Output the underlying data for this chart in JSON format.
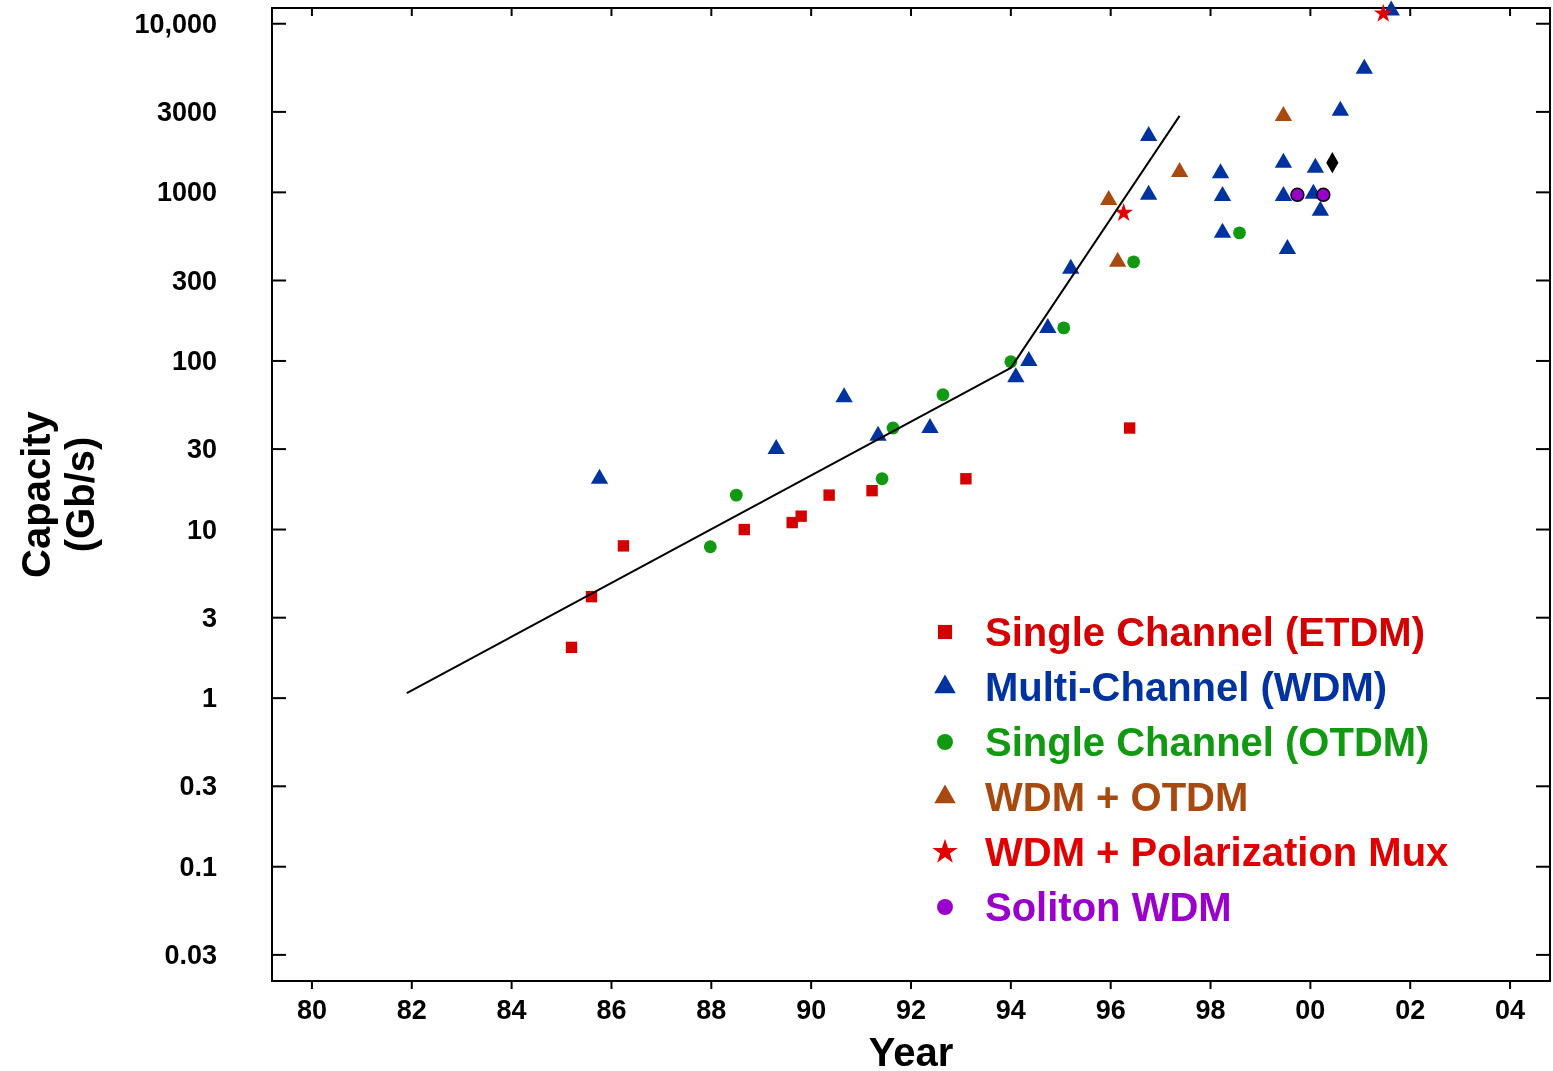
{
  "chart_data": {
    "type": "scatter",
    "xlabel": "Year",
    "ylabel": "Capacity (Gb/s)",
    "log": "y",
    "legend": "bottom right",
    "xlim": [
      1979.2,
      2004.8
    ],
    "xticks": [
      {
        "value": 1980,
        "label": "80"
      },
      {
        "value": 1982,
        "label": "82"
      },
      {
        "value": 1984,
        "label": "84"
      },
      {
        "value": 1986,
        "label": "86"
      },
      {
        "value": 1988,
        "label": "88"
      },
      {
        "value": 1990,
        "label": "90"
      },
      {
        "value": 1992,
        "label": "92"
      },
      {
        "value": 1994,
        "label": "94"
      },
      {
        "value": 1996,
        "label": "96"
      },
      {
        "value": 1998,
        "label": "98"
      },
      {
        "value": 2000,
        "label": "00"
      },
      {
        "value": 2002,
        "label": "02"
      },
      {
        "value": 2004,
        "label": "04"
      }
    ],
    "ylim": [
      0.021,
      12400
    ],
    "yticks": [
      0.03,
      0.1,
      0.3,
      1,
      3,
      10,
      30,
      100,
      300,
      1000,
      3000,
      {
        "value": 10000,
        "label": "10,000"
      }
    ],
    "series": [
      {
        "name": "Single Channel (ETDM)",
        "color": "#d40000",
        "marker": "square",
        "x": [
          1985.2,
          1985.6,
          1986.24,
          1988.66,
          1989.62,
          1989.8,
          1990.36,
          1991.22,
          1993.1,
          1996.38
        ],
        "values": [
          2.0,
          4.0,
          8.0,
          10,
          11,
          12,
          16,
          17,
          20,
          40
        ]
      },
      {
        "name": "Multi-Channel (WDM)",
        "color": "#0033a0",
        "marker": "triangle",
        "x": [
          1985.76,
          1989.3,
          1990.66,
          1991.34,
          1992.38,
          1994.1,
          1994.36,
          1994.74,
          1995.2,
          1996.76,
          1996.76,
          1998.2,
          1998.24,
          1998.24,
          1999.46,
          1999.46,
          1999.54,
          2000.1,
          2000.06,
          2000.2,
          2000.6,
          2001.08,
          2001.62
        ],
        "values": [
          20,
          30,
          61,
          36,
          40,
          80,
          100,
          157,
          352,
          2160,
          967,
          1300,
          950,
          575,
          1500,
          950,
          462,
          1400,
          980,
          777,
          3050,
          5400,
          12000
        ]
      },
      {
        "name": "Single Channel (OTDM)",
        "color": "#119911",
        "marker": "circle",
        "x": [
          1987.98,
          1988.5,
          1991.42,
          1991.64,
          1992.64,
          1994.0,
          1995.06,
          1996.46,
          1998.58
        ],
        "values": [
          7.9,
          16,
          20,
          40,
          63,
          99,
          157,
          387,
          575
        ]
      },
      {
        "name": "WDM + OTDM",
        "color": "#a84a10",
        "marker": "triangle",
        "x": [
          1995.96,
          1996.14,
          1997.38,
          1999.46
        ],
        "values": [
          900,
          387,
          1320,
          2840
        ]
      },
      {
        "name": "WDM + Polarization Mux",
        "color": "#e00000",
        "marker": "star",
        "x": [
          1996.26,
          2001.46
        ],
        "values": [
          755,
          11480
        ]
      },
      {
        "name": "Soliton WDM",
        "color": "#9900cc",
        "marker": "circle",
        "x": [
          1999.74,
          2000.26
        ],
        "values": [
          967,
          967
        ]
      },
      {
        "color": "#000000",
        "marker": "diamond",
        "x": [
          2000.44
        ],
        "values": [
          1500
        ]
      },
      {
        "type": "line",
        "color": "#000000",
        "marker": "none",
        "x": [
          1981.9,
          1994.0,
          1997.38
        ],
        "values": [
          1.07,
          91,
          2840
        ]
      }
    ]
  }
}
